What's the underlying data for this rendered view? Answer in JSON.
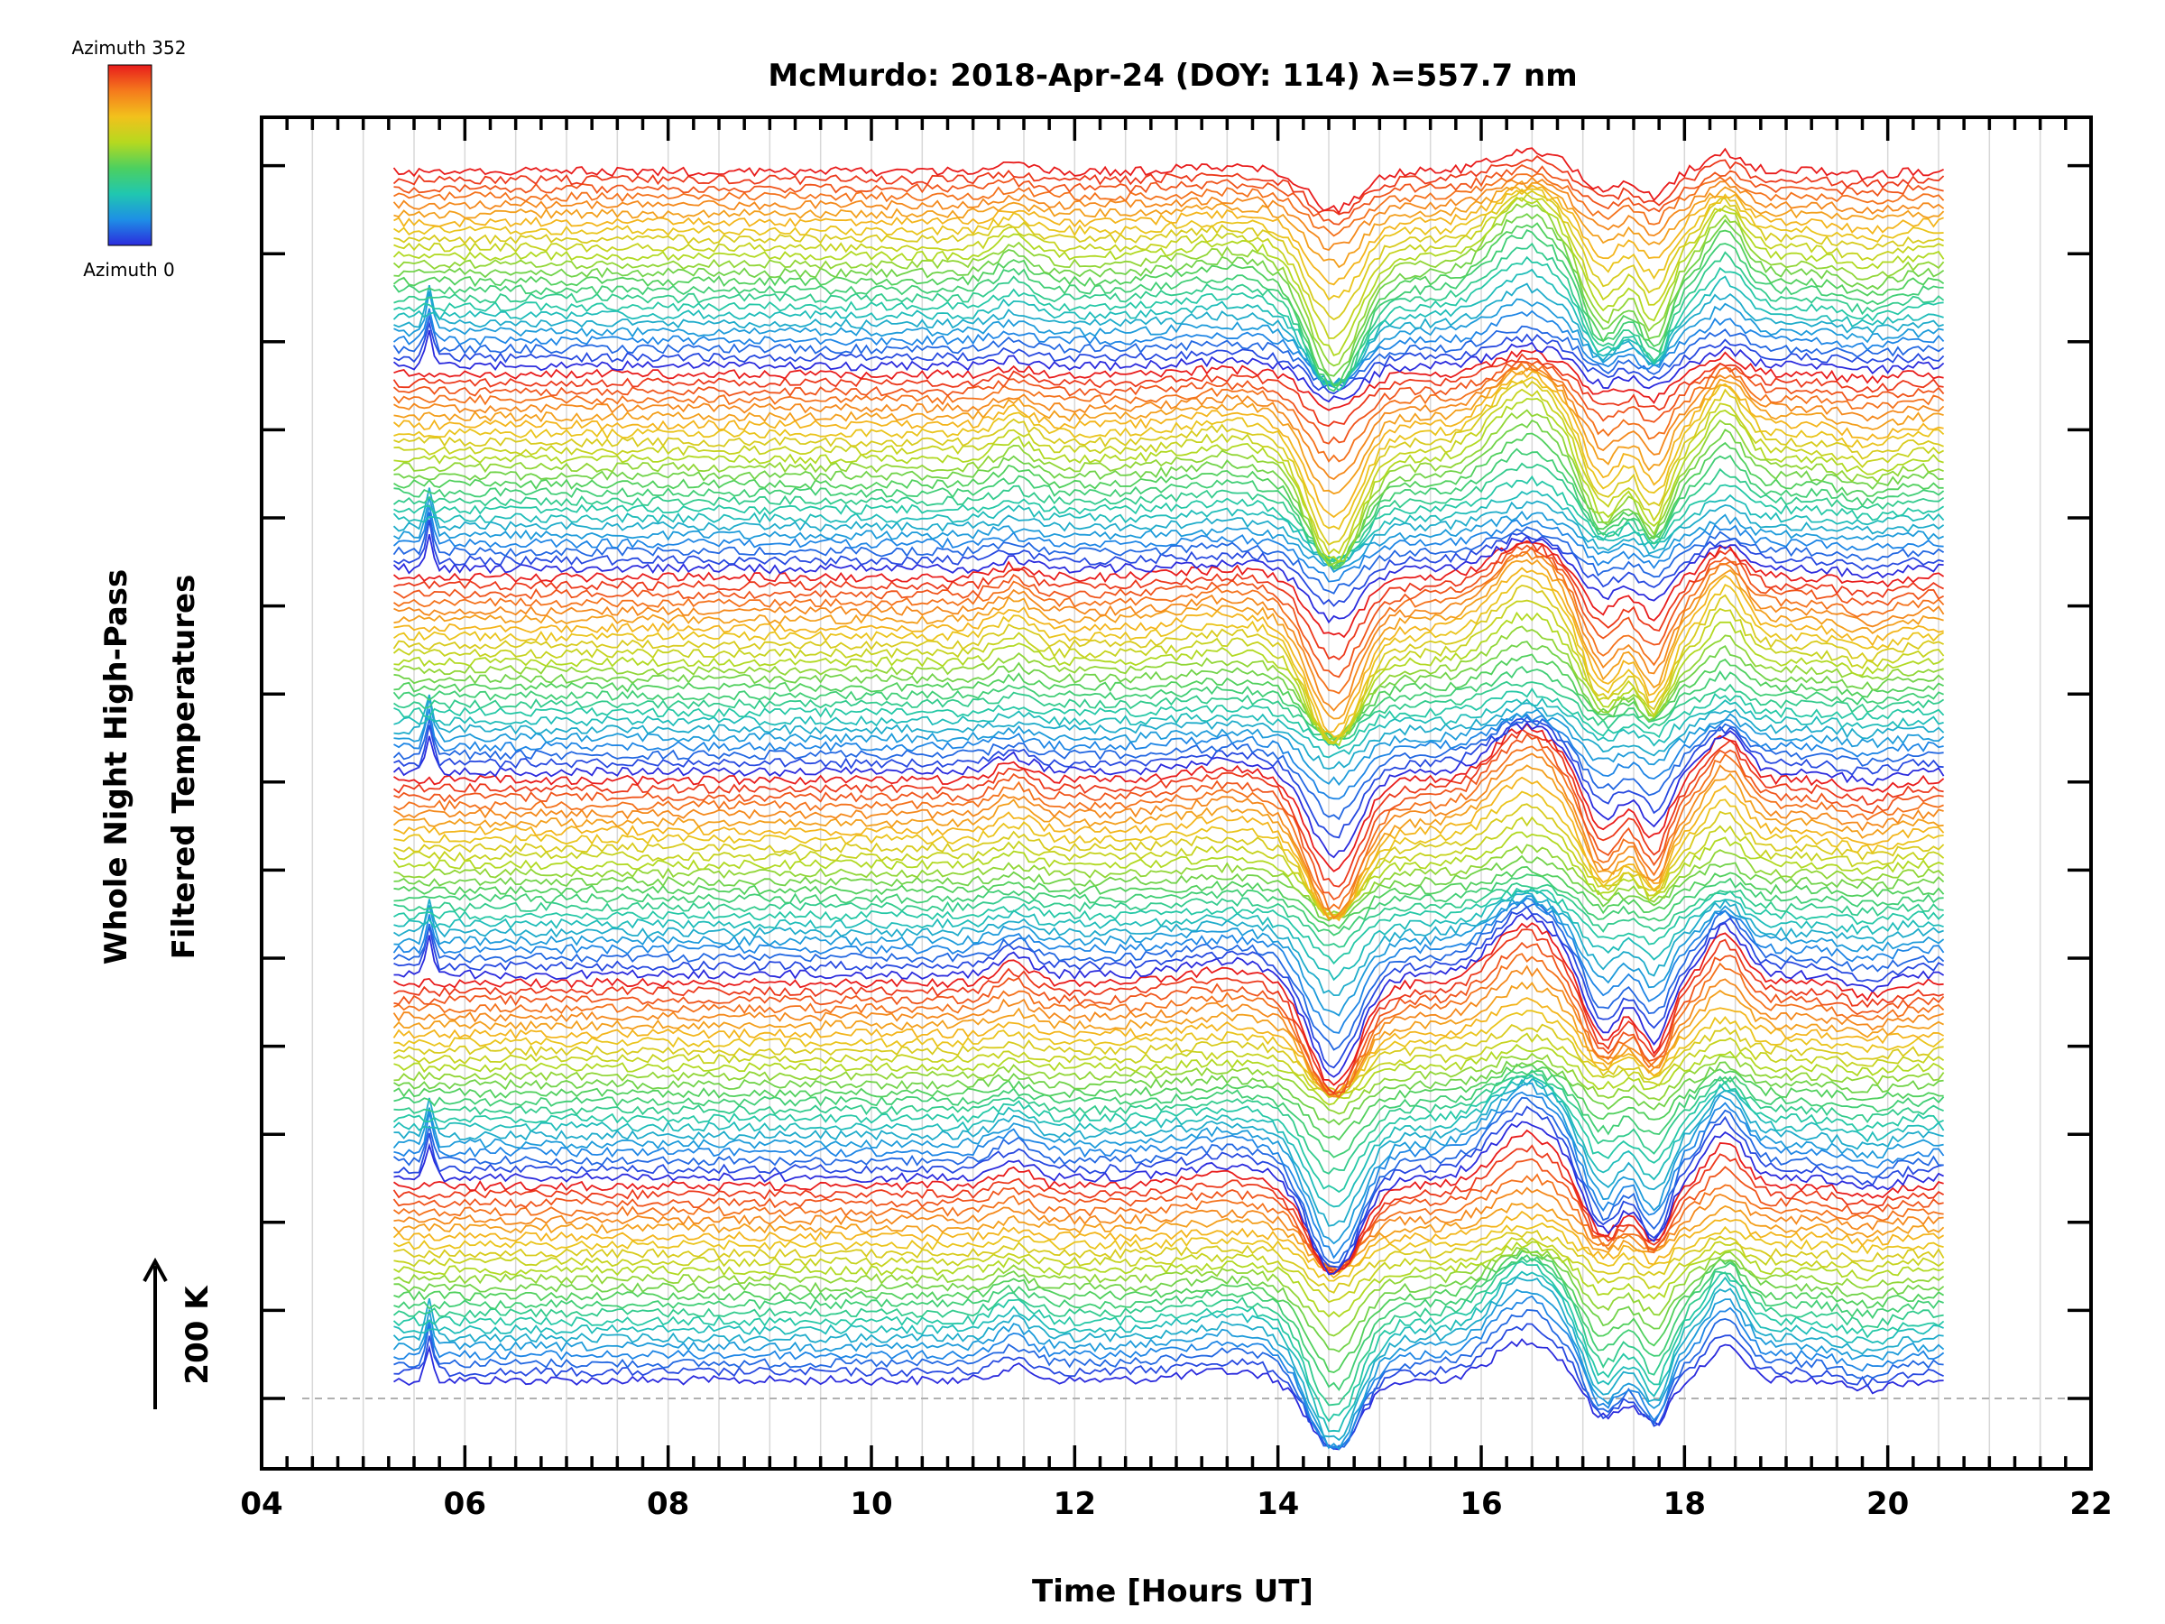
{
  "chart_data": {
    "type": "line",
    "title": "McMurdo: 2018-Apr-24 (DOY: 114) λ=557.7 nm",
    "xlabel": "Time [Hours UT]",
    "ylabel_lines": [
      "Whole Night High-Pass",
      "Filtered Temperatures"
    ],
    "scale_label": "200 K",
    "xlim": [
      4,
      22
    ],
    "x_ticks": [
      "04",
      "06",
      "08",
      "10",
      "12",
      "14",
      "16",
      "18",
      "20",
      "22"
    ],
    "x_range_data": [
      5.3,
      20.55
    ],
    "num_traces": 144,
    "color_legend": {
      "top_label": "Azimuth 352",
      "bottom_label": "Azimuth 0",
      "colormap": [
        "#2b2bdd",
        "#1e8fe6",
        "#20c7b0",
        "#4cd060",
        "#b6d91f",
        "#f2c11c",
        "#f57a1c",
        "#e81c1c"
      ]
    },
    "baseline_color": "#b0b0b0",
    "frame_color": "#000000"
  }
}
